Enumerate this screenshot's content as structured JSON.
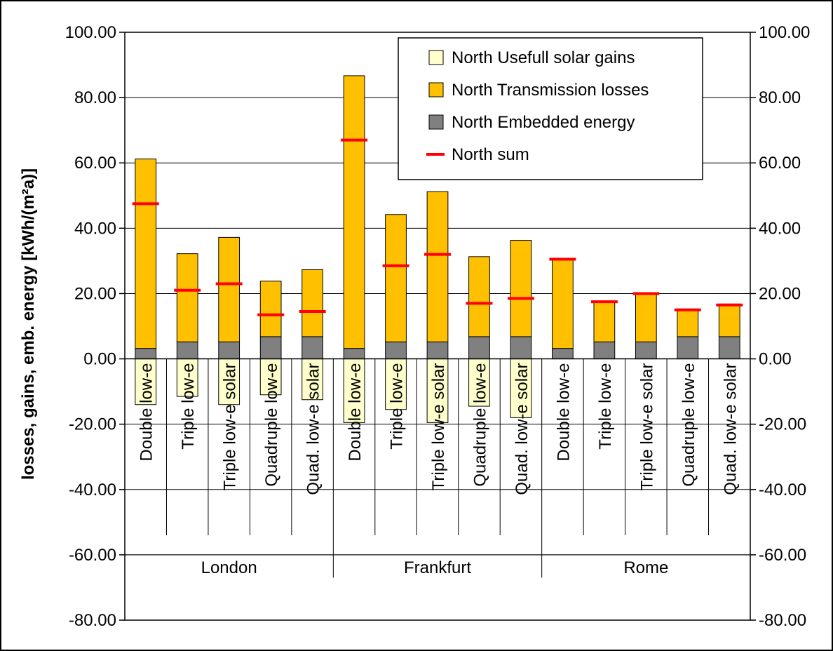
{
  "chart_data": {
    "type": "bar",
    "ylabel": "losses, gains, emb. energy [kWh/(m²a)]",
    "ylim": [
      -80,
      100
    ],
    "ytick_step": 20,
    "ytick_labels": [
      "100.00",
      "80.00",
      "60.00",
      "40.00",
      "20.00",
      "0.00",
      "-20.00",
      "-40.00",
      "-60.00",
      "-80.00"
    ],
    "right_axis": true,
    "grid": true,
    "legend_position": "top-right",
    "groups": [
      "London",
      "Frankfurt",
      "Rome"
    ],
    "categories": [
      "Double low-e",
      "Triple low-e",
      "Triple low-e solar",
      "Quadruple low-e",
      "Quad. low-e solar",
      "Double low-e",
      "Triple low-e",
      "Triple low-e solar",
      "Quadruple low-e",
      "Quad. low-e solar",
      "Double low-e",
      "Triple low-e",
      "Triple low-e solar",
      "Quadruple low-e",
      "Quad. low-e solar"
    ],
    "series": [
      {
        "name": "North Usefull solar gains",
        "kind": "bar",
        "color": "#FFFFCC",
        "values": [
          -14,
          -11.5,
          -14,
          -11,
          -12.5,
          -19.5,
          -15.5,
          -19.5,
          -14.5,
          -18,
          0,
          0,
          0,
          0,
          0
        ]
      },
      {
        "name": "North Transmission losses",
        "kind": "bar",
        "color": "#FFC000",
        "values": [
          58,
          27,
          32,
          17,
          20.5,
          83.5,
          39,
          46,
          24.5,
          29.5,
          27.5,
          12.5,
          15,
          8.5,
          10
        ]
      },
      {
        "name": "North Embedded energy",
        "kind": "bar",
        "color": "#808080",
        "values": [
          3.2,
          5.2,
          5.2,
          6.8,
          6.8,
          3.2,
          5.2,
          5.2,
          6.8,
          6.8,
          3.2,
          5.2,
          5.2,
          6.8,
          6.8
        ]
      },
      {
        "name": "North sum",
        "kind": "marker",
        "color": "#FF0000",
        "values": [
          47.5,
          21,
          23,
          13.5,
          14.5,
          67,
          28.5,
          32,
          17,
          18.5,
          30.5,
          17.5,
          20,
          15,
          16.5
        ]
      }
    ]
  }
}
